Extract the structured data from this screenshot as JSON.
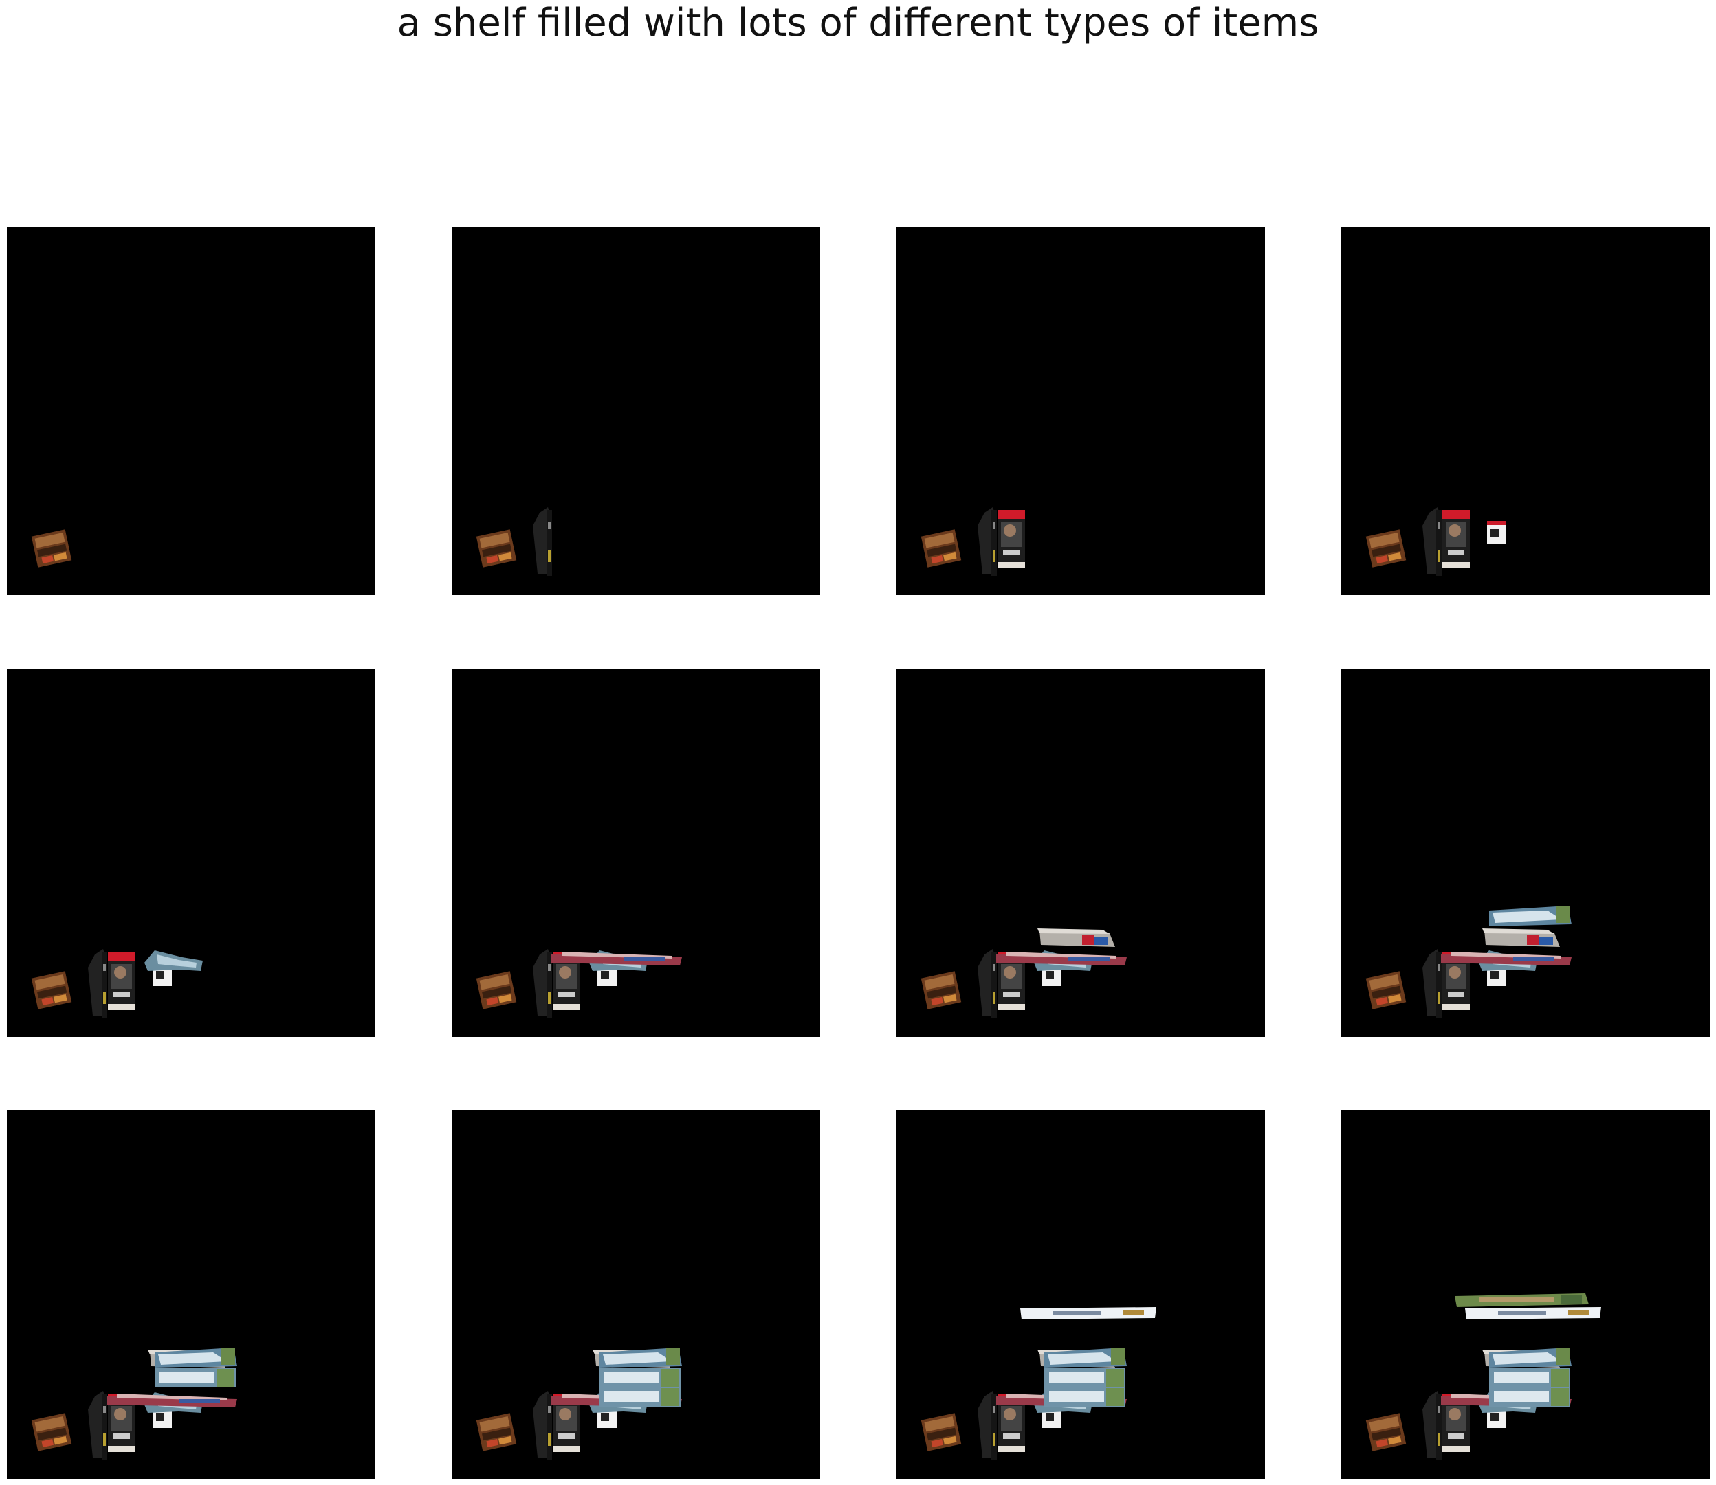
{
  "title": "a shelf filled with lots of different types of items",
  "colors": {
    "page_background": "#ffffff",
    "panel_background": "#000000",
    "title_text": "#111111"
  },
  "grid": {
    "rows": 3,
    "columns": 4
  },
  "panels": [
    {
      "step": 1,
      "objects": [
        "game-box"
      ]
    },
    {
      "step": 2,
      "objects": [
        "game-box",
        "dark-spine-case"
      ]
    },
    {
      "step": 3,
      "objects": [
        "game-box",
        "dark-spine-case",
        "dvd-case"
      ]
    },
    {
      "step": 4,
      "objects": [
        "game-box",
        "dark-spine-case",
        "dvd-case",
        "small-box"
      ]
    },
    {
      "step": 5,
      "objects": [
        "game-box",
        "dark-spine-case",
        "dvd-case",
        "small-box",
        "tilted-slab"
      ]
    },
    {
      "step": 6,
      "objects": [
        "game-box",
        "dark-spine-case",
        "dvd-case",
        "small-box",
        "tilted-slab",
        "long-flat-box"
      ]
    },
    {
      "step": 7,
      "objects": [
        "game-box",
        "dark-spine-case",
        "dvd-case",
        "small-box",
        "tilted-slab",
        "long-flat-box",
        "stacked-box-a"
      ]
    },
    {
      "step": 8,
      "objects": [
        "game-box",
        "dark-spine-case",
        "dvd-case",
        "small-box",
        "tilted-slab",
        "long-flat-box",
        "stacked-box-a",
        "scenic-box-1"
      ]
    },
    {
      "step": 9,
      "objects": [
        "game-box",
        "dark-spine-case",
        "dvd-case",
        "small-box",
        "tilted-slab",
        "long-flat-box",
        "stacked-box-a",
        "scenic-box-1",
        "scenic-box-2"
      ]
    },
    {
      "step": 10,
      "objects": [
        "game-box",
        "dark-spine-case",
        "dvd-case",
        "small-box",
        "tilted-slab",
        "long-flat-box",
        "stacked-box-a",
        "scenic-box-1",
        "scenic-box-2",
        "scenic-box-3"
      ]
    },
    {
      "step": 11,
      "objects": [
        "game-box",
        "dark-spine-case",
        "dvd-case",
        "small-box",
        "tilted-slab",
        "long-flat-box",
        "stacked-box-a",
        "scenic-box-1",
        "scenic-box-2",
        "scenic-box-3",
        "white-label-box"
      ]
    },
    {
      "step": 12,
      "objects": [
        "game-box",
        "dark-spine-case",
        "dvd-case",
        "small-box",
        "tilted-slab",
        "long-flat-box",
        "stacked-box-a",
        "scenic-box-1",
        "scenic-box-2",
        "scenic-box-3",
        "white-label-box",
        "top-green-box"
      ]
    }
  ]
}
